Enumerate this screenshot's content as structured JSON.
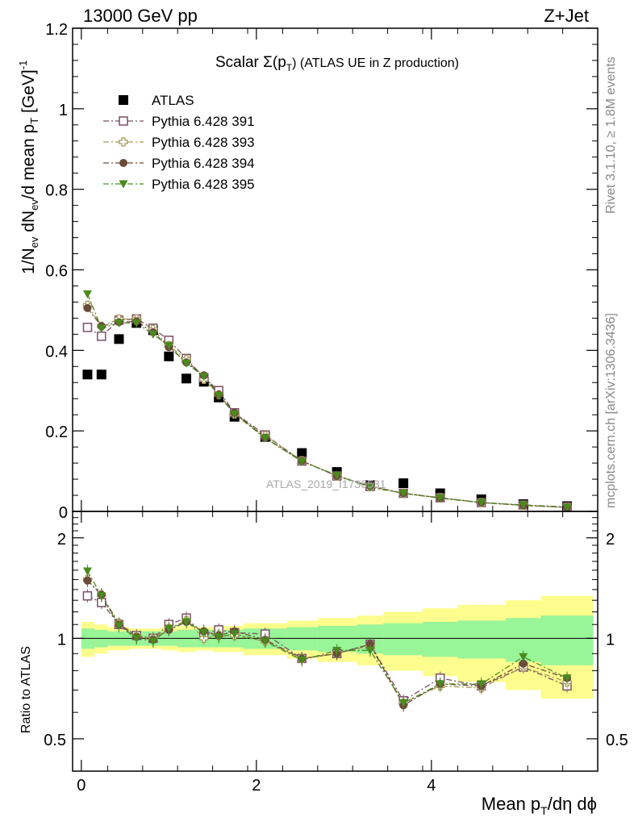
{
  "header": {
    "left": "13000 GeV pp",
    "right": "Z+Jet"
  },
  "side": {
    "rivet": "Rivet 3.1.10, ≥ 1.8M events",
    "mcplots": "mcplots.cern.ch [arXiv:1306.3436]"
  },
  "watermark": "ATLAS_2019_I1736531",
  "chart_data": [
    {
      "type": "scatter",
      "panel": "main",
      "title": "Scalar Σ(p_T) (ATLAS UE in Z production)",
      "title_parts": {
        "main": "Scalar Σ(p",
        "sub": "T",
        "rest": ") (ATLAS UE in Z production)"
      },
      "ylabel": "1/N_ev dN_ev/d mean p_T [GeV]^-1",
      "ylabel_parts": {
        "a": "1/N",
        "a_sub": "ev",
        "b": " dN",
        "b_sub": "ev",
        "c": "/d mean p",
        "c_sub": "T",
        "d": " [GeV]",
        "d_sup": "-1"
      },
      "xlim": [
        -0.1,
        5.9
      ],
      "ylim": [
        0,
        1.2
      ],
      "yticks": [
        0,
        0.2,
        0.4,
        0.6,
        0.8,
        1,
        1.2
      ],
      "ytick_labels": [
        "0",
        "0.2",
        "0.4",
        "0.6",
        "0.8",
        "1",
        "1.2"
      ],
      "x": [
        0.07,
        0.23,
        0.43,
        0.63,
        0.82,
        1.0,
        1.2,
        1.4,
        1.57,
        1.75,
        2.1,
        2.52,
        2.92,
        3.3,
        3.68,
        4.1,
        4.57,
        5.05,
        5.55
      ],
      "series": [
        {
          "name": "ATLAS",
          "marker": "square-filled",
          "color": "#000000",
          "values": [
            0.34,
            0.34,
            0.428,
            0.468,
            0.45,
            0.385,
            0.33,
            0.322,
            0.283,
            0.235,
            0.185,
            0.145,
            0.098,
            0.065,
            0.07,
            0.045,
            0.03,
            0.018,
            0.013
          ]
        },
        {
          "name": "Pythia 6.428 391",
          "marker": "square-open",
          "color": "#7b4f66",
          "values": [
            0.457,
            0.435,
            0.475,
            0.478,
            0.455,
            0.425,
            0.38,
            0.332,
            0.3,
            0.245,
            0.19,
            0.125,
            0.088,
            0.062,
            0.045,
            0.034,
            0.022,
            0.016,
            0.011
          ]
        },
        {
          "name": "Pythia 6.428 393",
          "marker": "plus-open",
          "color": "#a89a5a",
          "values": [
            0.512,
            0.46,
            0.478,
            0.478,
            0.452,
            0.412,
            0.378,
            0.328,
            0.29,
            0.242,
            0.188,
            0.126,
            0.088,
            0.062,
            0.045,
            0.034,
            0.022,
            0.015,
            0.01
          ]
        },
        {
          "name": "Pythia 6.428 394",
          "marker": "circle-filled",
          "color": "#6b4a3a",
          "values": [
            0.505,
            0.46,
            0.47,
            0.472,
            0.445,
            0.408,
            0.37,
            0.338,
            0.29,
            0.245,
            0.183,
            0.125,
            0.088,
            0.063,
            0.045,
            0.033,
            0.022,
            0.015,
            0.01
          ]
        },
        {
          "name": "Pythia 6.428 395",
          "marker": "triangle-down-filled",
          "color": "#4a8a1e",
          "values": [
            0.54,
            0.455,
            0.468,
            0.468,
            0.44,
            0.412,
            0.368,
            0.335,
            0.288,
            0.242,
            0.182,
            0.124,
            0.09,
            0.06,
            0.045,
            0.033,
            0.022,
            0.016,
            0.01
          ]
        }
      ]
    },
    {
      "type": "scatter",
      "panel": "ratio",
      "ylabel": "Ratio to ATLAS",
      "xlabel": "Mean p_T/dη dϕ",
      "xlabel_parts": {
        "a": "Mean p",
        "a_sub": "T",
        "b": "/dη dϕ"
      },
      "xlim": [
        -0.1,
        5.9
      ],
      "ylim": [
        0.4,
        2.4
      ],
      "log_y": true,
      "yticks": [
        0.5,
        1,
        2
      ],
      "ytick_labels": [
        "0.5",
        "1",
        "2"
      ],
      "xticks": [
        0,
        2,
        4
      ],
      "xtick_labels": [
        "0",
        "2",
        "4"
      ],
      "bin_edges": [
        0.0,
        0.15,
        0.3,
        0.55,
        0.72,
        0.92,
        1.1,
        1.3,
        1.5,
        1.65,
        1.85,
        2.35,
        2.7,
        3.15,
        3.45,
        3.9,
        4.3,
        4.85,
        5.25,
        5.85
      ],
      "band_green": [
        0.07,
        0.06,
        0.05,
        0.05,
        0.05,
        0.05,
        0.06,
        0.06,
        0.06,
        0.06,
        0.07,
        0.08,
        0.09,
        0.1,
        0.11,
        0.12,
        0.13,
        0.15,
        0.17
      ],
      "band_yellow": [
        0.12,
        0.1,
        0.08,
        0.07,
        0.07,
        0.08,
        0.09,
        0.08,
        0.09,
        0.09,
        0.11,
        0.13,
        0.15,
        0.17,
        0.2,
        0.23,
        0.26,
        0.3,
        0.34
      ],
      "x": [
        0.07,
        0.23,
        0.43,
        0.63,
        0.82,
        1.0,
        1.2,
        1.4,
        1.57,
        1.75,
        2.1,
        2.52,
        2.92,
        3.3,
        3.68,
        4.1,
        4.57,
        5.05,
        5.55
      ],
      "series": [
        {
          "name": "Pythia 6.428 391",
          "values": [
            1.34,
            1.28,
            1.1,
            1.02,
            1.0,
            1.1,
            1.15,
            1.03,
            1.06,
            1.04,
            1.03,
            0.87,
            0.9,
            0.96,
            0.65,
            0.76,
            0.72,
            0.82,
            0.72
          ]
        },
        {
          "name": "Pythia 6.428 393",
          "values": [
            1.5,
            1.35,
            1.11,
            1.02,
            1.0,
            1.07,
            1.13,
            1.0,
            1.02,
            1.02,
            0.98,
            0.87,
            0.9,
            0.95,
            0.64,
            0.72,
            0.71,
            0.82,
            0.74
          ]
        },
        {
          "name": "Pythia 6.428 394",
          "values": [
            1.49,
            1.35,
            1.1,
            1.01,
            0.99,
            1.06,
            1.12,
            1.05,
            1.02,
            1.05,
            0.99,
            0.87,
            0.9,
            0.96,
            0.63,
            0.73,
            0.72,
            0.84,
            0.76
          ]
        },
        {
          "name": "Pythia 6.428 395",
          "values": [
            1.59,
            1.34,
            1.09,
            1.0,
            0.98,
            1.07,
            1.12,
            1.04,
            1.01,
            1.03,
            0.98,
            0.86,
            0.92,
            0.92,
            0.64,
            0.73,
            0.73,
            0.88,
            0.76
          ]
        }
      ]
    }
  ]
}
